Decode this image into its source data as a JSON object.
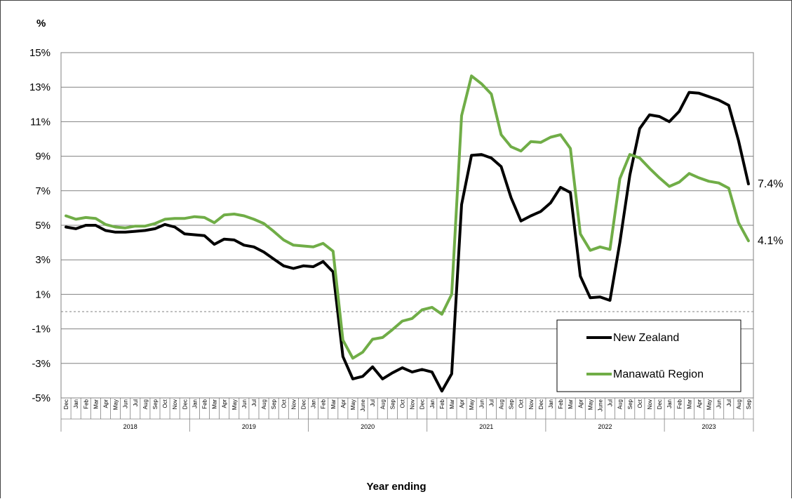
{
  "chart_data": {
    "type": "line",
    "ylabel": "%",
    "xlabel": "Year ending",
    "ylim": [
      -5,
      15
    ],
    "yticks": [
      "15%",
      "13%",
      "11%",
      "9%",
      "7%",
      "5%",
      "3%",
      "1%",
      "-1%",
      "-3%",
      "-5%"
    ],
    "months": [
      "Dec",
      "Jan",
      "Feb",
      "Mar",
      "Apr",
      "May",
      "Jun",
      "Jul",
      "Aug",
      "Sep",
      "Oct",
      "Nov",
      "Dec",
      "Jan",
      "Feb",
      "Mar",
      "Apr",
      "May",
      "Jun",
      "Jul",
      "Aug",
      "Sep",
      "Oct",
      "Nov",
      "Dec",
      "Jan",
      "Feb",
      "Mar",
      "Apr",
      "May",
      "June",
      "Jul",
      "Aug",
      "Sep",
      "Oct",
      "Nov",
      "Dec",
      "Jan",
      "Feb",
      "Mar",
      "Apr",
      "May",
      "Jun",
      "Jul",
      "Aug",
      "Sep",
      "Oct",
      "Nov",
      "Dec",
      "Jan",
      "Feb",
      "Mar",
      "Apr",
      "May",
      "June",
      "Jul",
      "Aug",
      "Sep",
      "Oct",
      "Nov",
      "Dec",
      "Jan",
      "Feb",
      "Mar",
      "Apr",
      "May",
      "Jun",
      "Jul",
      "Aug",
      "Sep"
    ],
    "years": [
      {
        "label": "2018",
        "start": 1,
        "end": 12
      },
      {
        "label": "2019",
        "start": 13,
        "end": 24
      },
      {
        "label": "2020",
        "start": 25,
        "end": 36
      },
      {
        "label": "2021",
        "start": 37,
        "end": 48
      },
      {
        "label": "2022",
        "start": 49,
        "end": 60
      },
      {
        "label": "2023",
        "start": 61,
        "end": 69
      }
    ],
    "series": [
      {
        "name": "New Zealand",
        "color": "#000000",
        "values": [
          4.9,
          4.8,
          5.0,
          5.0,
          4.7,
          4.6,
          4.6,
          4.65,
          4.7,
          4.8,
          5.05,
          4.9,
          4.5,
          4.45,
          4.4,
          3.9,
          4.2,
          4.15,
          3.85,
          3.75,
          3.45,
          3.05,
          2.65,
          2.5,
          2.65,
          2.6,
          2.9,
          2.3,
          -2.6,
          -3.9,
          -3.75,
          -3.2,
          -3.9,
          -3.55,
          -3.25,
          -3.5,
          -3.35,
          -3.5,
          -4.6,
          -3.6,
          6.2,
          9.05,
          9.1,
          8.9,
          8.4,
          6.6,
          5.25,
          5.55,
          5.8,
          6.3,
          7.2,
          6.9,
          2.05,
          0.8,
          0.85,
          0.65,
          4.0,
          7.9,
          10.6,
          11.4,
          11.3,
          11.0,
          11.6,
          12.7,
          12.65,
          12.45,
          12.25,
          11.95,
          9.9,
          7.4
        ]
      },
      {
        "name": "Manawatū Region",
        "color": "#70ad47",
        "values": [
          5.55,
          5.35,
          5.45,
          5.4,
          5.05,
          4.9,
          4.85,
          4.95,
          4.95,
          5.1,
          5.35,
          5.4,
          5.4,
          5.5,
          5.45,
          5.15,
          5.6,
          5.65,
          5.55,
          5.35,
          5.1,
          4.65,
          4.15,
          3.85,
          3.8,
          3.75,
          3.95,
          3.5,
          -1.65,
          -2.7,
          -2.35,
          -1.6,
          -1.5,
          -1.05,
          -0.55,
          -0.4,
          0.1,
          0.25,
          -0.15,
          1.0,
          11.35,
          13.65,
          13.2,
          12.6,
          10.25,
          9.55,
          9.3,
          9.85,
          9.8,
          10.1,
          10.25,
          9.45,
          4.5,
          3.55,
          3.75,
          3.6,
          7.7,
          9.1,
          8.9,
          8.3,
          7.75,
          7.25,
          7.5,
          8.0,
          7.75,
          7.55,
          7.45,
          7.15,
          5.15,
          4.1
        ]
      }
    ],
    "end_labels": [
      "7.4%",
      "4.1%"
    ],
    "legend_position": "bottom-right",
    "grid": true
  }
}
